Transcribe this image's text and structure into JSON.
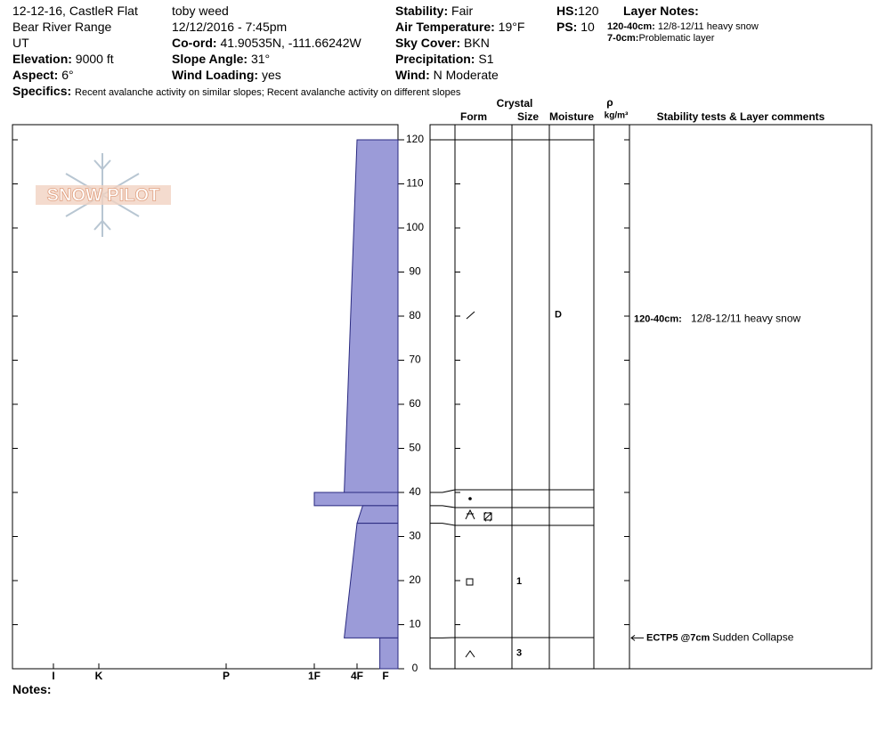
{
  "header": {
    "location": "12-12-16, CastleR Flat",
    "range": "Bear River Range",
    "state": "UT",
    "elevation": {
      "label": "Elevation:",
      "value": "9000 ft"
    },
    "aspect": {
      "label": "Aspect:",
      "value": "6°"
    },
    "observer": "toby weed",
    "datetime": "12/12/2016 - 7:45pm",
    "coord": {
      "label": "Co-ord:",
      "value": "41.90535N, -111.66242W"
    },
    "slope": {
      "label": "Slope Angle:",
      "value": "31°"
    },
    "wind_loading": {
      "label": "Wind Loading:",
      "value": "yes"
    },
    "stability": {
      "label": "Stability:",
      "value": "Fair"
    },
    "air_temp": {
      "label": "Air Temperature:",
      "value": "19°F"
    },
    "sky_cover": {
      "label": "Sky Cover:",
      "value": "BKN"
    },
    "precipitation": {
      "label": "Precipitation:",
      "value": "S1"
    },
    "wind": {
      "label": "Wind:",
      "value": "N Moderate"
    },
    "hs": {
      "label": "HS:",
      "value": "120"
    },
    "ps": {
      "label": "PS:",
      "value": "10"
    },
    "layer_notes": {
      "title": "Layer Notes:",
      "items": [
        {
          "label": "120-40cm:",
          "text": "12/8-12/11 heavy snow"
        },
        {
          "label": "7-0cm:",
          "text": "Problematic layer"
        }
      ]
    },
    "specifics": {
      "label": "Specifics:",
      "value": "Recent avalanche activity on similar slopes; Recent avalanche activity on different slopes"
    }
  },
  "logo": "SNOW PILOT",
  "profile": {
    "depth_lim": [
      0,
      120
    ],
    "depth_ticks": [
      0,
      10,
      20,
      30,
      40,
      50,
      60,
      70,
      80,
      90,
      100,
      110,
      120
    ],
    "hardness_ticks": [
      {
        "value": 6,
        "label": "I"
      },
      {
        "value": 5,
        "label": "K"
      },
      {
        "value": 4,
        "label": "P"
      },
      {
        "value": 3,
        "label": "1F"
      },
      {
        "value": 2,
        "label": "4F"
      },
      {
        "value": 1,
        "label": "F"
      }
    ],
    "hardness_color": "#9b9bd8",
    "layers": [
      {
        "top": 120,
        "bottom": 40,
        "hardness_top": 2.0,
        "hardness_bottom": 2.3,
        "moisture": "D",
        "comment": {
          "label": "120-40cm:",
          "text": "12/8-12/11 heavy snow"
        }
      },
      {
        "top": 40,
        "bottom": 37,
        "hardness_top": 3.0,
        "hardness_bottom": 3.0
      },
      {
        "top": 37,
        "bottom": 33,
        "hardness_top": 1.8,
        "hardness_bottom": 2.0
      },
      {
        "top": 33,
        "bottom": 7,
        "hardness_top": 2.0,
        "hardness_bottom": 2.3,
        "size": "1"
      },
      {
        "top": 7,
        "bottom": 0,
        "hardness_top": 1.2,
        "hardness_bottom": 1.2,
        "size": "3"
      }
    ]
  },
  "table": {
    "crystal": "Crystal",
    "form": "Form",
    "size": "Size",
    "moisture": "Moisture",
    "rho": "ρ",
    "density_unit": "kg/m³",
    "comments": "Stability tests & Layer comments",
    "tests": [
      {
        "label": "ECTP5 @7cm",
        "text": "Sudden Collapse",
        "depth": 7
      }
    ]
  },
  "notes_label": "Notes:"
}
